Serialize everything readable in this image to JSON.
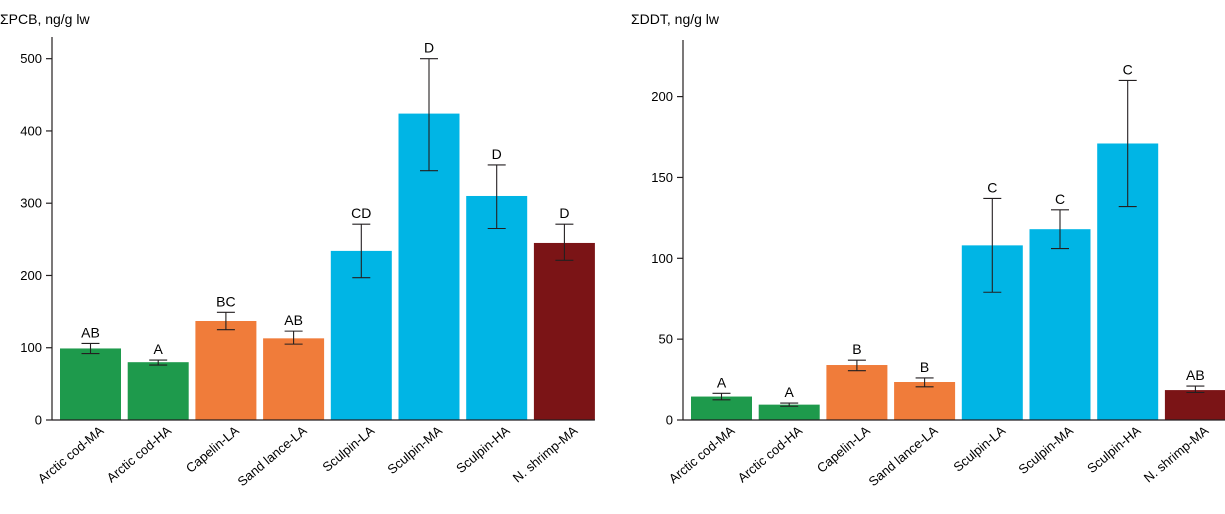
{
  "chart_data": [
    {
      "type": "bar",
      "ylabel": "ΣPCB, ng/g lw",
      "ylim": [
        0,
        530
      ],
      "yticks": [
        0,
        100,
        200,
        300,
        400,
        500
      ],
      "categories": [
        "Arctic cod-MA",
        "Arctic cod-HA",
        "Capelin-LA",
        "Sand lance-LA",
        "Sculpin-LA",
        "Sculpin-MA",
        "Sculpin-HA",
        "N. shrimp-MA"
      ],
      "values": [
        99,
        80,
        137,
        113,
        234,
        424,
        310,
        245
      ],
      "error_low": [
        92,
        76,
        125,
        105,
        197,
        345,
        265,
        221
      ],
      "error_high": [
        106,
        83,
        149,
        123,
        271,
        500,
        353,
        271
      ],
      "significance_labels": [
        "AB",
        "A",
        "BC",
        "AB",
        "CD",
        "D",
        "D",
        "D"
      ],
      "bar_colors": [
        "#1e9a4c",
        "#1e9a4c",
        "#f07c3a",
        "#f07c3a",
        "#00b5e5",
        "#00b5e5",
        "#00b5e5",
        "#7b1416"
      ]
    },
    {
      "type": "bar",
      "ylabel": "ΣDDT, ng/g lw",
      "ylim": [
        0,
        235
      ],
      "yticks": [
        0,
        50,
        100,
        150,
        200
      ],
      "categories": [
        "Arctic cod-MA",
        "Arctic cod-HA",
        "Capelin-LA",
        "Sand lance-LA",
        "Sculpin-LA",
        "Sculpin-MA",
        "Sculpin-HA",
        "N. shrimp-MA"
      ],
      "values": [
        14.5,
        9.5,
        34,
        23.5,
        108,
        118,
        171,
        18.5
      ],
      "error_low": [
        12.5,
        8.5,
        30.5,
        20.5,
        79,
        106,
        132,
        17
      ],
      "error_high": [
        16.5,
        10.5,
        37,
        26,
        137,
        130,
        210,
        21
      ],
      "significance_labels": [
        "A",
        "A",
        "B",
        "B",
        "C",
        "C",
        "C",
        "AB"
      ],
      "bar_colors": [
        "#1e9a4c",
        "#1e9a4c",
        "#f07c3a",
        "#f07c3a",
        "#00b5e5",
        "#00b5e5",
        "#00b5e5",
        "#7b1416"
      ]
    }
  ]
}
